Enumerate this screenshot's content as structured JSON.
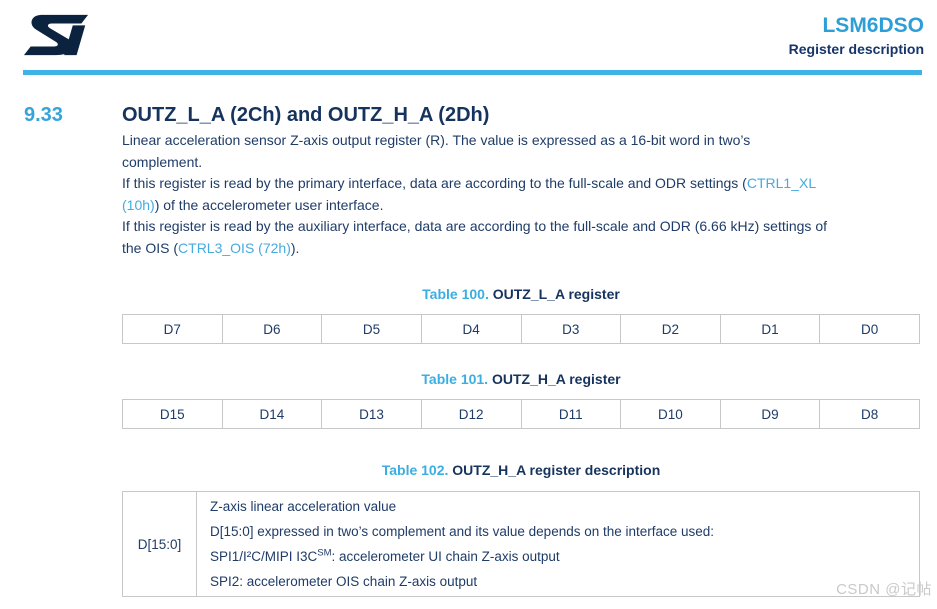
{
  "header": {
    "logo_name": "st-logo",
    "title": "LSM6DSO",
    "subtitle": "Register description"
  },
  "section": {
    "number": "9.33",
    "title": "OUTZ_L_A (2Ch) and OUTZ_H_A (2Dh)",
    "paragraphs": [
      [
        {
          "t": "Linear acceleration sensor Z-axis output register (R). The value is expressed as a 16-bit word in two’s"
        },
        {
          "br": true
        },
        {
          "t": "complement."
        }
      ],
      [
        {
          "t": "If this register is read by the primary interface, data are according to the full-scale and ODR settings ("
        },
        {
          "t": "CTRL1_XL",
          "link": true
        },
        {
          "br": true
        },
        {
          "t": "(10h)",
          "link": true
        },
        {
          "t": ") of the accelerometer user interface."
        }
      ],
      [
        {
          "t": "If this register is read by the auxiliary interface, data are according to the full-scale and ODR (6.66 kHz) settings of"
        },
        {
          "br": true
        },
        {
          "t": "the OIS ("
        },
        {
          "t": "CTRL3_OIS (72h)",
          "link": true
        },
        {
          "t": ")."
        }
      ]
    ]
  },
  "tables": [
    {
      "type": "bits",
      "caption_label": "Table 100.",
      "caption_title": "OUTZ_L_A register",
      "cells": [
        "D7",
        "D6",
        "D5",
        "D4",
        "D3",
        "D2",
        "D1",
        "D0"
      ]
    },
    {
      "type": "bits",
      "caption_label": "Table 101.",
      "caption_title": "OUTZ_H_A register",
      "cells": [
        "D15",
        "D14",
        "D13",
        "D12",
        "D11",
        "D10",
        "D9",
        "D8"
      ]
    },
    {
      "type": "description",
      "caption_label": "Table 102.",
      "caption_title": "OUTZ_H_A register description",
      "rows": [
        {
          "bits": "D[15:0]",
          "lines": [
            [
              {
                "t": "Z-axis linear acceleration value"
              }
            ],
            [
              {
                "t": "D[15:0] expressed in two’s complement and its value depends on the interface used:"
              }
            ],
            [
              {
                "t": "SPI1/I²C/MIPI I3C"
              },
              {
                "t": "SM",
                "sup": true
              },
              {
                "t": ": accelerometer UI chain Z-axis output"
              }
            ],
            [
              {
                "t": "SPI2: accelerometer OIS chain Z-axis output"
              }
            ]
          ]
        }
      ]
    }
  ],
  "watermark": "CSDN @记帖",
  "colors": {
    "accent_blue": "#3FB3E6",
    "title_blue": "#2D9FD6",
    "section_number_blue": "#35A3DC",
    "caption_label_blue": "#3AAEE2",
    "link_blue": "#45ABDF",
    "navy_text": "#1F3C68",
    "heading_navy": "#16335E",
    "logo_navy": "#0C2340",
    "table_border": "#C5C7C9",
    "watermark_gray": "#C9C9C9"
  }
}
